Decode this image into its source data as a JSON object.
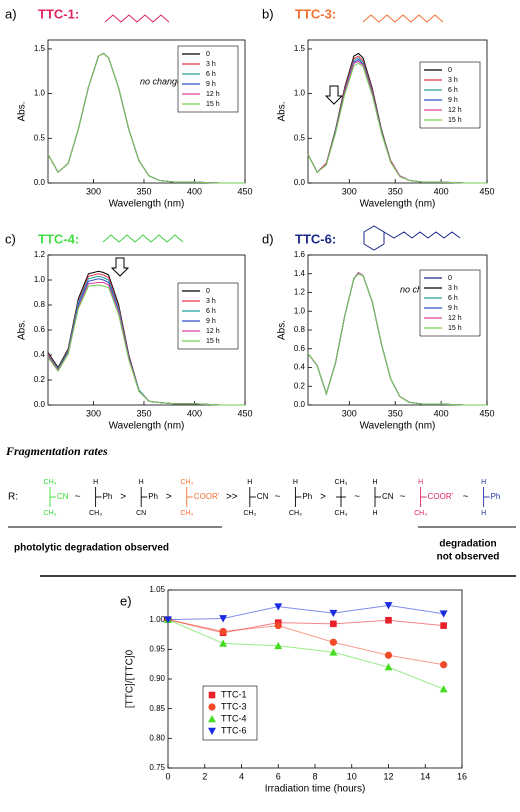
{
  "chart_data": [
    {
      "type": "line",
      "label": "a)",
      "title": "TTC-1:",
      "annotation": "no change",
      "xlabel": "Wavelength (nm)",
      "ylabel": "Abs.",
      "x": [
        255,
        265,
        275,
        285,
        295,
        305,
        310,
        315,
        325,
        335,
        345,
        355,
        365,
        380,
        400,
        425,
        450
      ],
      "xlim": [
        255,
        450
      ],
      "xticks": [
        300,
        350,
        400,
        450
      ],
      "ylim": [
        0,
        1.6
      ],
      "yticks": [
        {
          "value": 0,
          "label": "0.0"
        },
        0.5,
        {
          "value": 1,
          "label": "1.0"
        },
        1.5
      ],
      "series": [
        {
          "name": "0",
          "color": "#000000",
          "values": [
            0.32,
            0.12,
            0.22,
            0.6,
            1.07,
            1.42,
            1.45,
            1.4,
            1.06,
            0.6,
            0.25,
            0.08,
            0.03,
            0.01,
            0.01,
            0,
            0
          ]
        },
        {
          "name": "3 h",
          "color": "#e8304a",
          "values": [
            0.32,
            0.12,
            0.22,
            0.6,
            1.07,
            1.42,
            1.45,
            1.4,
            1.06,
            0.6,
            0.25,
            0.08,
            0.03,
            0.01,
            0.01,
            0,
            0
          ]
        },
        {
          "name": "6 h",
          "color": "#20a0a0",
          "values": [
            0.32,
            0.12,
            0.22,
            0.6,
            1.07,
            1.42,
            1.45,
            1.4,
            1.06,
            0.6,
            0.25,
            0.08,
            0.03,
            0.01,
            0.01,
            0,
            0
          ]
        },
        {
          "name": "9 h",
          "color": "#3050d0",
          "values": [
            0.32,
            0.12,
            0.22,
            0.6,
            1.07,
            1.42,
            1.45,
            1.4,
            1.06,
            0.6,
            0.25,
            0.08,
            0.03,
            0.01,
            0.01,
            0,
            0
          ]
        },
        {
          "name": "12 h",
          "color": "#e040a0",
          "values": [
            0.32,
            0.12,
            0.22,
            0.6,
            1.07,
            1.42,
            1.45,
            1.4,
            1.06,
            0.6,
            0.25,
            0.08,
            0.03,
            0.01,
            0.01,
            0,
            0
          ]
        },
        {
          "name": "15 h",
          "color": "#70d050",
          "values": [
            0.32,
            0.12,
            0.22,
            0.6,
            1.07,
            1.42,
            1.45,
            1.4,
            1.06,
            0.6,
            0.25,
            0.08,
            0.03,
            0.01,
            0.01,
            0,
            0
          ]
        }
      ]
    },
    {
      "type": "line",
      "label": "b)",
      "title": "TTC-3:",
      "xlabel": "Wavelength (nm)",
      "ylabel": "Abs.",
      "x": [
        255,
        265,
        275,
        285,
        295,
        305,
        310,
        315,
        325,
        335,
        345,
        355,
        365,
        380,
        400,
        425,
        450
      ],
      "xlim": [
        255,
        450
      ],
      "xticks": [
        300,
        350,
        400,
        450
      ],
      "ylim": [
        0,
        1.6
      ],
      "yticks": [
        {
          "value": 0,
          "label": "0.0"
        },
        0.5,
        {
          "value": 1,
          "label": "1.0"
        },
        1.5
      ],
      "series": [
        {
          "name": "0",
          "color": "#000000",
          "values": [
            0.32,
            0.12,
            0.22,
            0.6,
            1.07,
            1.42,
            1.45,
            1.4,
            1.06,
            0.6,
            0.25,
            0.08,
            0.03,
            0.01,
            0.01,
            0,
            0
          ]
        },
        {
          "name": "3 h",
          "color": "#e8304a",
          "values": [
            0.32,
            0.12,
            0.22,
            0.59,
            1.05,
            1.39,
            1.42,
            1.37,
            1.04,
            0.59,
            0.25,
            0.08,
            0.03,
            0.01,
            0.01,
            0,
            0
          ]
        },
        {
          "name": "6 h",
          "color": "#20a0a0",
          "values": [
            0.32,
            0.12,
            0.21,
            0.58,
            1.03,
            1.37,
            1.4,
            1.35,
            1.02,
            0.58,
            0.24,
            0.08,
            0.03,
            0.01,
            0.01,
            0,
            0
          ]
        },
        {
          "name": "9 h",
          "color": "#3050d0",
          "values": [
            0.32,
            0.12,
            0.21,
            0.57,
            1.02,
            1.35,
            1.38,
            1.33,
            1.01,
            0.57,
            0.24,
            0.08,
            0.03,
            0.01,
            0.01,
            0,
            0
          ]
        },
        {
          "name": "12 h",
          "color": "#e040a0",
          "values": [
            0.32,
            0.12,
            0.21,
            0.56,
            1.01,
            1.34,
            1.36,
            1.32,
            1.0,
            0.56,
            0.24,
            0.08,
            0.03,
            0.01,
            0.01,
            0,
            0
          ]
        },
        {
          "name": "15 h",
          "color": "#70d050",
          "values": [
            0.32,
            0.12,
            0.2,
            0.56,
            0.99,
            1.31,
            1.34,
            1.3,
            0.98,
            0.56,
            0.23,
            0.07,
            0.03,
            0.01,
            0.01,
            0,
            0
          ]
        }
      ]
    },
    {
      "type": "line",
      "label": "c)",
      "title": "TTC-4:",
      "xlabel": "Wavelength (nm)",
      "ylabel": "Abs.",
      "x": [
        255,
        265,
        275,
        285,
        295,
        305,
        310,
        315,
        325,
        335,
        345,
        355,
        365,
        380,
        400,
        425,
        450
      ],
      "xlim": [
        255,
        450
      ],
      "xticks": [
        300,
        350,
        400,
        450
      ],
      "ylim": [
        0,
        1.2
      ],
      "yticks": [
        {
          "value": 0,
          "label": "0.0"
        },
        0.2,
        0.4,
        0.6,
        0.8,
        {
          "value": 1,
          "label": "1.0"
        },
        1.2
      ],
      "series": [
        {
          "name": "0",
          "color": "#000000",
          "values": [
            0.42,
            0.3,
            0.45,
            0.85,
            1.05,
            1.07,
            1.06,
            1.04,
            0.8,
            0.4,
            0.12,
            0.03,
            0.02,
            0.01,
            0.01,
            0,
            0
          ]
        },
        {
          "name": "3 h",
          "color": "#e8304a",
          "values": [
            0.41,
            0.29,
            0.44,
            0.83,
            1.03,
            1.05,
            1.04,
            1.02,
            0.78,
            0.39,
            0.12,
            0.03,
            0.02,
            0.01,
            0.01,
            0,
            0
          ]
        },
        {
          "name": "6 h",
          "color": "#20a0a0",
          "values": [
            0.4,
            0.29,
            0.43,
            0.82,
            1.01,
            1.03,
            1.02,
            1.0,
            0.77,
            0.38,
            0.12,
            0.03,
            0.02,
            0.01,
            0.01,
            0,
            0
          ]
        },
        {
          "name": "9 h",
          "color": "#3050d0",
          "values": [
            0.39,
            0.28,
            0.42,
            0.8,
            0.99,
            1.01,
            1.0,
            0.98,
            0.75,
            0.38,
            0.11,
            0.03,
            0.02,
            0.01,
            0.01,
            0,
            0
          ]
        },
        {
          "name": "12 h",
          "color": "#e040a0",
          "values": [
            0.39,
            0.28,
            0.41,
            0.78,
            0.97,
            0.98,
            0.98,
            0.96,
            0.74,
            0.37,
            0.11,
            0.03,
            0.02,
            0.01,
            0.01,
            0,
            0
          ]
        },
        {
          "name": "15 h",
          "color": "#70d050",
          "values": [
            0.38,
            0.27,
            0.41,
            0.77,
            0.95,
            0.96,
            0.95,
            0.94,
            0.72,
            0.36,
            0.11,
            0.03,
            0.02,
            0.01,
            0.01,
            0,
            0
          ]
        }
      ]
    },
    {
      "type": "line",
      "label": "d)",
      "title": "TTC-6:",
      "annotation": "no change",
      "xlabel": "Wavelength (nm)",
      "ylabel": "Abs.",
      "x": [
        255,
        265,
        275,
        285,
        295,
        305,
        310,
        315,
        325,
        335,
        345,
        355,
        365,
        380,
        400,
        425,
        450
      ],
      "xlim": [
        255,
        450
      ],
      "xticks": [
        300,
        350,
        400,
        450
      ],
      "ylim": [
        0,
        1.6
      ],
      "yticks": [
        {
          "value": 0,
          "label": "0.0"
        },
        0.2,
        0.4,
        0.6,
        0.8,
        {
          "value": 1,
          "label": "1.0"
        },
        1.2,
        1.4,
        1.6
      ],
      "series": [
        {
          "name": "0",
          "color": "#1a2a8a",
          "values": [
            0.55,
            0.42,
            0.12,
            0.45,
            0.95,
            1.35,
            1.41,
            1.38,
            1.1,
            0.65,
            0.28,
            0.09,
            0.03,
            0.01,
            0.01,
            0,
            0
          ]
        },
        {
          "name": "3 h",
          "color": "#000000",
          "values": [
            0.55,
            0.42,
            0.12,
            0.45,
            0.95,
            1.35,
            1.41,
            1.38,
            1.1,
            0.65,
            0.28,
            0.09,
            0.03,
            0.01,
            0.01,
            0,
            0
          ]
        },
        {
          "name": "6 h",
          "color": "#20a0a0",
          "values": [
            0.55,
            0.42,
            0.12,
            0.45,
            0.95,
            1.35,
            1.4,
            1.38,
            1.1,
            0.65,
            0.28,
            0.09,
            0.03,
            0.01,
            0.01,
            0,
            0
          ]
        },
        {
          "name": "9 h",
          "color": "#3050d0",
          "values": [
            0.55,
            0.42,
            0.12,
            0.45,
            0.95,
            1.35,
            1.4,
            1.38,
            1.1,
            0.65,
            0.28,
            0.09,
            0.03,
            0.01,
            0.01,
            0,
            0
          ]
        },
        {
          "name": "12 h",
          "color": "#e040a0",
          "values": [
            0.55,
            0.42,
            0.12,
            0.45,
            0.95,
            1.35,
            1.41,
            1.38,
            1.1,
            0.65,
            0.28,
            0.09,
            0.03,
            0.01,
            0.01,
            0,
            0
          ]
        },
        {
          "name": "15 h",
          "color": "#70d050",
          "values": [
            0.55,
            0.42,
            0.12,
            0.45,
            0.95,
            1.35,
            1.4,
            1.38,
            1.1,
            0.65,
            0.28,
            0.09,
            0.03,
            0.01,
            0.01,
            0,
            0
          ]
        }
      ]
    },
    {
      "type": "scatter",
      "label": "e)",
      "xlabel": "Irradiation time (hours)",
      "ylabel": "[TTC]/[TTC]0",
      "x": [
        0,
        3,
        6,
        9,
        12,
        15
      ],
      "xlim": [
        0,
        16
      ],
      "xticks": [
        0,
        2,
        4,
        6,
        8,
        10,
        12,
        14,
        16
      ],
      "ylim": [
        0.75,
        1.05
      ],
      "yticks": [
        0.75,
        {
          "value": 0.8,
          "label": "0.80"
        },
        0.85,
        {
          "value": 0.9,
          "label": "0.90"
        },
        0.95,
        {
          "value": 1,
          "label": "1.00"
        },
        1.05
      ],
      "series": [
        {
          "name": "TTC-1",
          "color": "#e8202a",
          "marker": "square",
          "values": [
            1.0,
            0.978,
            0.995,
            0.993,
            0.999,
            0.99
          ]
        },
        {
          "name": "TTC-3",
          "color": "#f04a28",
          "marker": "circle",
          "values": [
            1.0,
            0.98,
            0.99,
            0.962,
            0.94,
            0.924
          ]
        },
        {
          "name": "TTC-4",
          "color": "#44dd22",
          "marker": "triangle",
          "values": [
            1.0,
            0.96,
            0.956,
            0.945,
            0.92,
            0.883
          ]
        },
        {
          "name": "TTC-6",
          "color": "#1a2ae0",
          "marker": "triangle-down",
          "values": [
            1.0,
            1.002,
            1.022,
            1.011,
            1.024,
            1.01
          ]
        }
      ]
    }
  ],
  "scheme": {
    "title": "Fragmentation rates",
    "prefix": "R:",
    "items": [
      {
        "top": "CH₃",
        "right": "CN",
        "bottom": "CH₃",
        "color": "#33dd33"
      },
      {
        "top": "H",
        "right": "Ph",
        "bottom": "CH₃",
        "color": "#000000"
      },
      {
        "top": "H",
        "right": "Ph",
        "bottom": "CN",
        "color": "#000000"
      },
      {
        "top": "CH₃",
        "right": "COOR'",
        "bottom": "CH₃",
        "color": "#f07030"
      },
      {
        "top": "H",
        "right": "CN",
        "bottom": "CH₃",
        "color": "#000000"
      },
      {
        "top": "H",
        "right": "Ph",
        "bottom": "CH₃",
        "color": "#000000"
      },
      {
        "top": "CH₃",
        "right": "",
        "bottom": "CH₃",
        "color": "#000000"
      },
      {
        "top": "H",
        "right": "CN",
        "bottom": "H",
        "color": "#000000"
      },
      {
        "top": "H",
        "right": "COOR'",
        "bottom": "CH₃",
        "color": "#e0206a"
      },
      {
        "top": "H",
        "right": "Ph",
        "bottom": "H",
        "color": "#2030a0"
      }
    ],
    "operators": [
      "~",
      ">",
      ">",
      ">>",
      "~",
      ">",
      "~",
      "~",
      "~"
    ],
    "left_label": "photolytic degradation observed",
    "right_label": [
      "degradation",
      "not observed"
    ]
  }
}
